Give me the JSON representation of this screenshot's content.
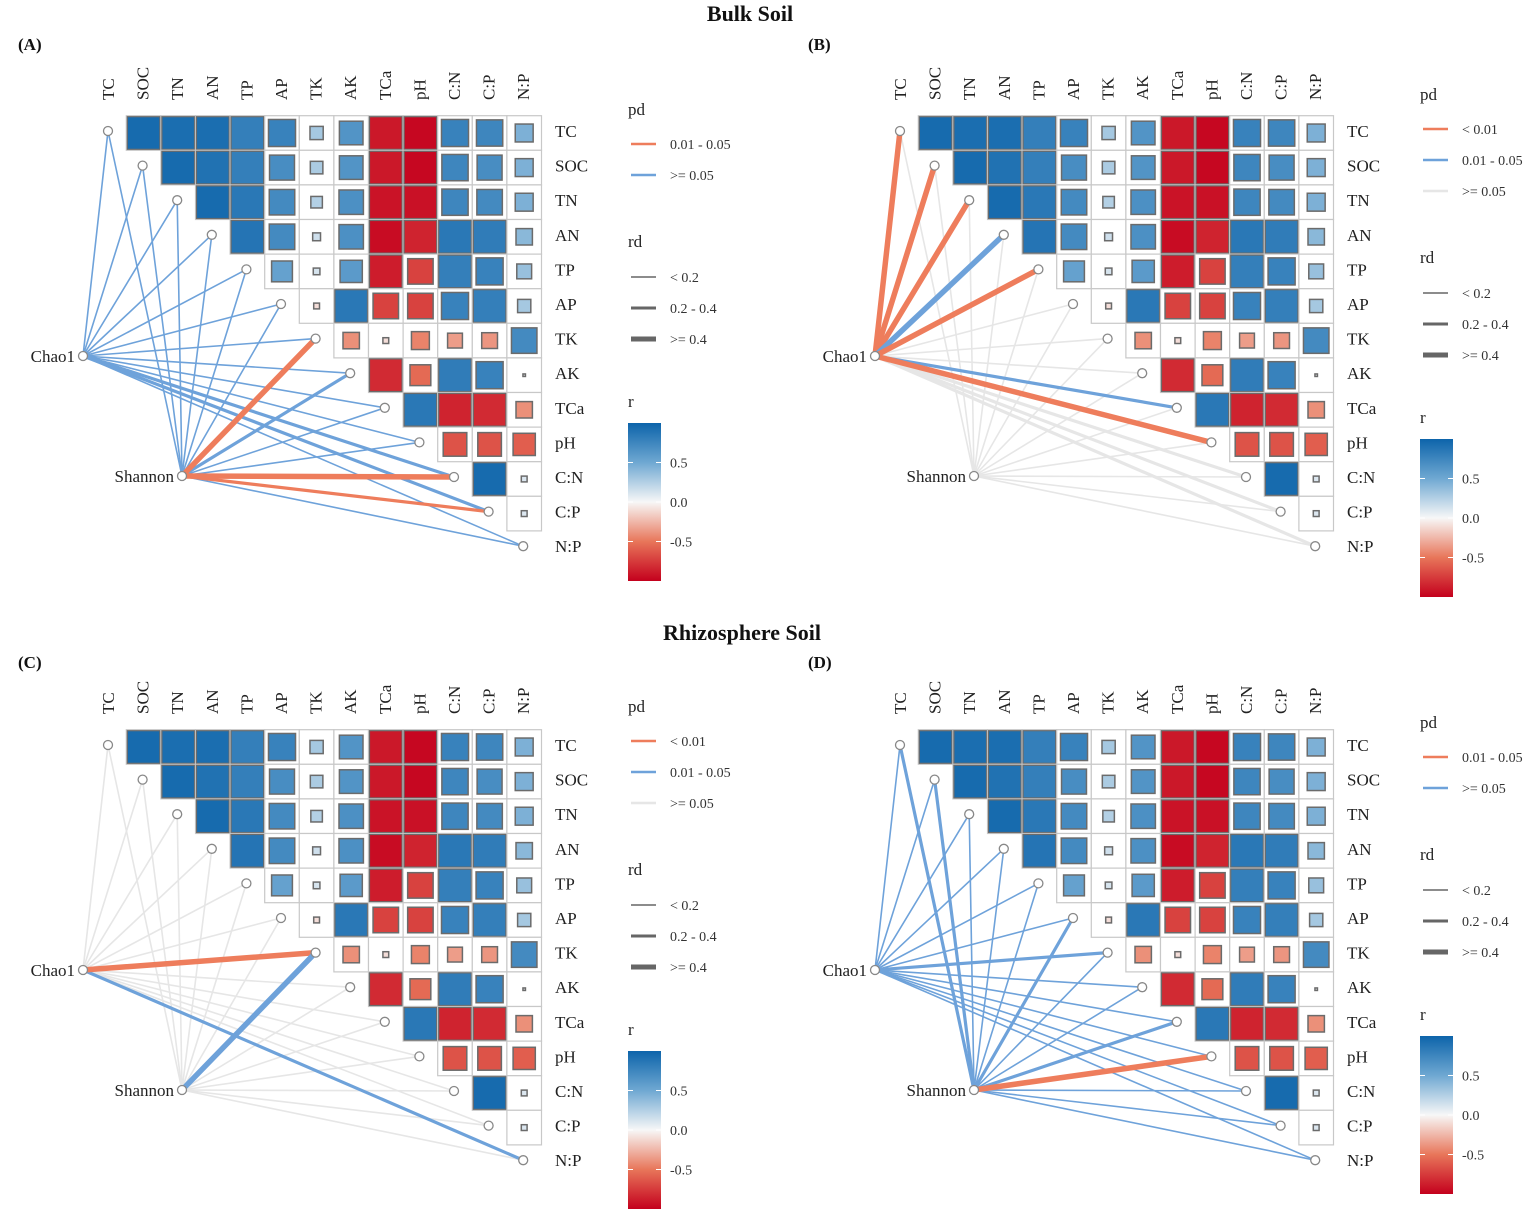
{
  "titles": {
    "top": "Bulk Soil",
    "bottom": "Rhizosphere Soil"
  },
  "chart_data": [
    {
      "type": "heatmap",
      "panel_label": "(A)",
      "group": "Bulk Soil",
      "variables": [
        "TC",
        "SOC",
        "TN",
        "AN",
        "TP",
        "AP",
        "TK",
        "AK",
        "TCa",
        "pH",
        "C:N",
        "C:P",
        "N:P"
      ],
      "r_upper": [
        [
          0.95,
          0.93,
          0.93,
          0.8,
          0.78,
          0.3,
          0.65,
          -0.9,
          -0.97,
          0.78,
          0.75,
          0.45
        ],
        [
          0.95,
          0.9,
          0.8,
          0.7,
          0.28,
          0.65,
          -0.9,
          -0.97,
          0.75,
          0.7,
          0.45
        ],
        [
          0.95,
          0.85,
          0.72,
          0.25,
          0.68,
          -0.92,
          -0.93,
          0.75,
          0.72,
          0.45
        ],
        [
          0.88,
          0.72,
          0.15,
          0.68,
          -0.95,
          -0.85,
          0.85,
          0.82,
          0.4
        ],
        [
          0.55,
          0.12,
          0.6,
          -0.88,
          -0.72,
          0.8,
          0.78,
          0.35
        ],
        [
          -0.1,
          0.85,
          -0.72,
          -0.72,
          0.78,
          0.8,
          0.3
        ],
        [
          -0.4,
          -0.1,
          -0.45,
          -0.35,
          -0.38,
          0.72
        ],
        [
          -0.82,
          -0.55,
          0.82,
          0.78,
          0.03
        ],
        [
          0.85,
          -0.85,
          -0.82,
          -0.4
        ],
        [
          -0.65,
          -0.65,
          -0.6
        ],
        [
          0.95,
          0.1
        ],
        [
          0.1
        ]
      ],
      "nodes": [
        "Chao1",
        "Shannon"
      ],
      "pd_legend": {
        "title": "pd",
        "items": [
          "0.01 - 0.05",
          ">= 0.05"
        ],
        "colors": [
          "#ee7d5c",
          "#6ea2da"
        ]
      },
      "rd_legend": {
        "title": "rd",
        "items": [
          "< 0.2",
          "0.2 - 0.4",
          ">= 0.4"
        ]
      },
      "r_legend": {
        "title": "r",
        "ticks": [
          "0.5",
          "0.0",
          "-0.5"
        ],
        "range": [
          -1,
          1
        ]
      },
      "links": {
        "Chao1": {
          "pd": [
            1,
            1,
            1,
            1,
            1,
            1,
            1,
            1,
            1,
            1,
            1,
            1,
            1
          ],
          "rd": [
            0,
            0,
            0,
            0,
            0,
            0,
            0,
            0,
            0,
            0,
            1,
            1,
            0
          ]
        },
        "Shannon": {
          "pd": [
            1,
            1,
            1,
            1,
            1,
            1,
            0,
            1,
            1,
            1,
            0,
            0,
            1
          ],
          "rd": [
            0,
            0,
            0,
            0,
            0,
            0,
            2,
            1,
            0,
            0,
            2,
            1,
            0
          ]
        }
      }
    },
    {
      "type": "heatmap",
      "panel_label": "(B)",
      "group": "Bulk Soil",
      "variables": [
        "TC",
        "SOC",
        "TN",
        "AN",
        "TP",
        "AP",
        "TK",
        "AK",
        "TCa",
        "pH",
        "C:N",
        "C:P",
        "N:P"
      ],
      "r_upper": [
        [
          0.95,
          0.93,
          0.93,
          0.8,
          0.78,
          0.3,
          0.65,
          -0.9,
          -0.97,
          0.78,
          0.75,
          0.45
        ],
        [
          0.95,
          0.9,
          0.8,
          0.7,
          0.28,
          0.65,
          -0.9,
          -0.97,
          0.75,
          0.7,
          0.45
        ],
        [
          0.95,
          0.85,
          0.72,
          0.25,
          0.68,
          -0.92,
          -0.93,
          0.75,
          0.72,
          0.45
        ],
        [
          0.88,
          0.72,
          0.15,
          0.68,
          -0.95,
          -0.85,
          0.85,
          0.82,
          0.4
        ],
        [
          0.55,
          0.12,
          0.6,
          -0.88,
          -0.72,
          0.8,
          0.78,
          0.35
        ],
        [
          -0.1,
          0.85,
          -0.72,
          -0.72,
          0.78,
          0.8,
          0.3
        ],
        [
          -0.4,
          -0.1,
          -0.45,
          -0.35,
          -0.38,
          0.72
        ],
        [
          -0.82,
          -0.55,
          0.82,
          0.78,
          0.03
        ],
        [
          0.85,
          -0.85,
          -0.82,
          -0.4
        ],
        [
          -0.65,
          -0.65,
          -0.6
        ],
        [
          0.95,
          0.1
        ],
        [
          0.1
        ]
      ],
      "nodes": [
        "Chao1",
        "Shannon"
      ],
      "pd_legend": {
        "title": "pd",
        "items": [
          "< 0.01",
          "0.01 - 0.05",
          ">= 0.05"
        ],
        "colors": [
          "#ee7d5c",
          "#6ea2da",
          "#e6e6e6"
        ]
      },
      "rd_legend": {
        "title": "rd",
        "items": [
          "< 0.2",
          "0.2 - 0.4",
          ">= 0.4"
        ]
      },
      "r_legend": {
        "title": "r",
        "ticks": [
          "0.5",
          "0.0",
          "-0.5"
        ],
        "range": [
          -1,
          1
        ]
      },
      "links": {
        "Chao1": {
          "pd": [
            0,
            0,
            0,
            1,
            0,
            2,
            2,
            2,
            1,
            0,
            2,
            2,
            2
          ],
          "rd": [
            2,
            2,
            2,
            2,
            2,
            0,
            0,
            0,
            1,
            2,
            1,
            1,
            1
          ]
        },
        "Shannon": {
          "pd": [
            2,
            2,
            2,
            2,
            2,
            2,
            2,
            2,
            2,
            2,
            2,
            2,
            2
          ],
          "rd": [
            0,
            0,
            0,
            0,
            0,
            0,
            0,
            0,
            0,
            0,
            0,
            0,
            0
          ]
        }
      }
    },
    {
      "type": "heatmap",
      "panel_label": "(C)",
      "group": "Rhizosphere Soil",
      "variables": [
        "TC",
        "SOC",
        "TN",
        "AN",
        "TP",
        "AP",
        "TK",
        "AK",
        "TCa",
        "pH",
        "C:N",
        "C:P",
        "N:P"
      ],
      "r_upper": [
        [
          0.95,
          0.93,
          0.93,
          0.8,
          0.78,
          0.3,
          0.65,
          -0.9,
          -0.97,
          0.78,
          0.75,
          0.45
        ],
        [
          0.95,
          0.9,
          0.8,
          0.7,
          0.28,
          0.65,
          -0.9,
          -0.97,
          0.75,
          0.7,
          0.45
        ],
        [
          0.95,
          0.85,
          0.72,
          0.25,
          0.68,
          -0.92,
          -0.93,
          0.75,
          0.72,
          0.45
        ],
        [
          0.88,
          0.72,
          0.15,
          0.68,
          -0.95,
          -0.85,
          0.85,
          0.82,
          0.4
        ],
        [
          0.55,
          0.12,
          0.6,
          -0.88,
          -0.72,
          0.8,
          0.78,
          0.35
        ],
        [
          -0.1,
          0.85,
          -0.72,
          -0.72,
          0.78,
          0.8,
          0.3
        ],
        [
          -0.4,
          -0.1,
          -0.45,
          -0.35,
          -0.38,
          0.72
        ],
        [
          -0.82,
          -0.55,
          0.82,
          0.78,
          0.03
        ],
        [
          0.85,
          -0.85,
          -0.82,
          -0.4
        ],
        [
          -0.65,
          -0.65,
          -0.6
        ],
        [
          0.95,
          0.1
        ],
        [
          0.1
        ]
      ],
      "nodes": [
        "Chao1",
        "Shannon"
      ],
      "pd_legend": {
        "title": "pd",
        "items": [
          "< 0.01",
          "0.01 - 0.05",
          ">= 0.05"
        ],
        "colors": [
          "#ee7d5c",
          "#6ea2da",
          "#e6e6e6"
        ]
      },
      "rd_legend": {
        "title": "rd",
        "items": [
          "< 0.2",
          "0.2 - 0.4",
          ">= 0.4"
        ]
      },
      "r_legend": {
        "title": "r",
        "ticks": [
          "0.5",
          "0.0",
          "-0.5"
        ],
        "range": [
          -1,
          1
        ]
      },
      "links": {
        "Chao1": {
          "pd": [
            2,
            2,
            2,
            2,
            2,
            2,
            0,
            2,
            2,
            2,
            2,
            2,
            1
          ],
          "rd": [
            0,
            0,
            0,
            0,
            0,
            0,
            2,
            0,
            0,
            0,
            0,
            0,
            1
          ]
        },
        "Shannon": {
          "pd": [
            2,
            2,
            2,
            2,
            2,
            2,
            1,
            2,
            2,
            2,
            2,
            2,
            2
          ],
          "rd": [
            0,
            0,
            0,
            0,
            0,
            0,
            2,
            0,
            0,
            0,
            0,
            0,
            0
          ]
        }
      }
    },
    {
      "type": "heatmap",
      "panel_label": "(D)",
      "group": "Rhizosphere Soil",
      "variables": [
        "TC",
        "SOC",
        "TN",
        "AN",
        "TP",
        "AP",
        "TK",
        "AK",
        "TCa",
        "pH",
        "C:N",
        "C:P",
        "N:P"
      ],
      "r_upper": [
        [
          0.95,
          0.93,
          0.93,
          0.8,
          0.78,
          0.3,
          0.65,
          -0.9,
          -0.97,
          0.78,
          0.75,
          0.45
        ],
        [
          0.95,
          0.9,
          0.8,
          0.7,
          0.28,
          0.65,
          -0.9,
          -0.97,
          0.75,
          0.7,
          0.45
        ],
        [
          0.95,
          0.85,
          0.72,
          0.25,
          0.68,
          -0.92,
          -0.93,
          0.75,
          0.72,
          0.45
        ],
        [
          0.88,
          0.72,
          0.15,
          0.68,
          -0.95,
          -0.85,
          0.85,
          0.82,
          0.4
        ],
        [
          0.55,
          0.12,
          0.6,
          -0.88,
          -0.72,
          0.8,
          0.78,
          0.35
        ],
        [
          -0.1,
          0.85,
          -0.72,
          -0.72,
          0.78,
          0.8,
          0.3
        ],
        [
          -0.4,
          -0.1,
          -0.45,
          -0.35,
          -0.38,
          0.72
        ],
        [
          -0.82,
          -0.55,
          0.82,
          0.78,
          0.03
        ],
        [
          0.85,
          -0.85,
          -0.82,
          -0.4
        ],
        [
          -0.65,
          -0.65,
          -0.6
        ],
        [
          0.95,
          0.1
        ],
        [
          0.1
        ]
      ],
      "nodes": [
        "Chao1",
        "Shannon"
      ],
      "pd_legend": {
        "title": "pd",
        "items": [
          "0.01 - 0.05",
          ">= 0.05"
        ],
        "colors": [
          "#ee7d5c",
          "#6ea2da"
        ]
      },
      "rd_legend": {
        "title": "rd",
        "items": [
          "< 0.2",
          "0.2 - 0.4",
          ">= 0.4"
        ]
      },
      "r_legend": {
        "title": "r",
        "ticks": [
          "0.5",
          "0.0",
          "-0.5"
        ],
        "range": [
          -1,
          1
        ]
      },
      "links": {
        "Chao1": {
          "pd": [
            1,
            1,
            1,
            1,
            1,
            1,
            1,
            1,
            1,
            1,
            1,
            1,
            1
          ],
          "rd": [
            0,
            0,
            0,
            0,
            0,
            0,
            1,
            0,
            0,
            0,
            0,
            0,
            0
          ]
        },
        "Shannon": {
          "pd": [
            1,
            1,
            1,
            1,
            1,
            1,
            1,
            1,
            1,
            0,
            1,
            1,
            1
          ],
          "rd": [
            1,
            1,
            0,
            0,
            0,
            1,
            0,
            0,
            1,
            2,
            0,
            0,
            0
          ]
        }
      }
    }
  ]
}
